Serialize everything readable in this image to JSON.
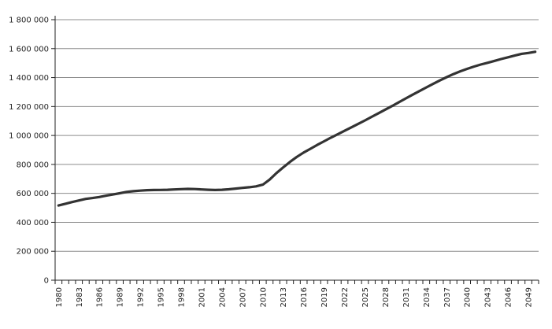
{
  "chart_data": {
    "type": "line",
    "title": "",
    "xlabel": "",
    "ylabel": "",
    "ylim": [
      0,
      1800000
    ],
    "yticks": [
      0,
      200000,
      400000,
      600000,
      800000,
      1000000,
      1200000,
      1400000,
      1600000,
      1800000
    ],
    "ytick_labels": [
      "0",
      "200 000",
      "400 000",
      "600 000",
      "800 000",
      "1 000 000",
      "1 200 000",
      "1 400 000",
      "1 600 000",
      "1 800 000"
    ],
    "grid": "horizontal",
    "line_color": "#333333",
    "grid_color": "#8c8c8c",
    "x_label_step": 3,
    "x": [
      1980,
      1981,
      1982,
      1983,
      1984,
      1985,
      1986,
      1987,
      1988,
      1989,
      1990,
      1991,
      1992,
      1993,
      1994,
      1995,
      1996,
      1997,
      1998,
      1999,
      2000,
      2001,
      2002,
      2003,
      2004,
      2005,
      2006,
      2007,
      2008,
      2009,
      2010,
      2011,
      2012,
      2013,
      2014,
      2015,
      2016,
      2017,
      2018,
      2019,
      2020,
      2021,
      2022,
      2023,
      2024,
      2025,
      2026,
      2027,
      2028,
      2029,
      2030,
      2031,
      2032,
      2033,
      2034,
      2035,
      2036,
      2037,
      2038,
      2039,
      2040,
      2041,
      2042,
      2043,
      2044,
      2045,
      2046,
      2047,
      2048,
      2049,
      2050
    ],
    "series": [
      {
        "values": [
          516000,
          528000,
          540000,
          551000,
          562000,
          568000,
          575000,
          584000,
          592000,
          601000,
          610000,
          615000,
          619000,
          622000,
          623000,
          624000,
          625000,
          627000,
          629000,
          631000,
          630000,
          627000,
          625000,
          623000,
          625000,
          628000,
          633000,
          638000,
          642000,
          648000,
          660000,
          695000,
          740000,
          780000,
          818000,
          852000,
          882000,
          908000,
          935000,
          960000,
          985000,
          1008000,
          1032000,
          1056000,
          1080000,
          1104000,
          1129000,
          1154000,
          1179000,
          1204000,
          1230000,
          1256000,
          1282000,
          1307000,
          1332000,
          1356000,
          1380000,
          1403000,
          1424000,
          1443000,
          1460000,
          1476000,
          1490000,
          1502000,
          1515000,
          1528000,
          1540000,
          1552000,
          1564000,
          1570000,
          1578000
        ]
      }
    ]
  }
}
